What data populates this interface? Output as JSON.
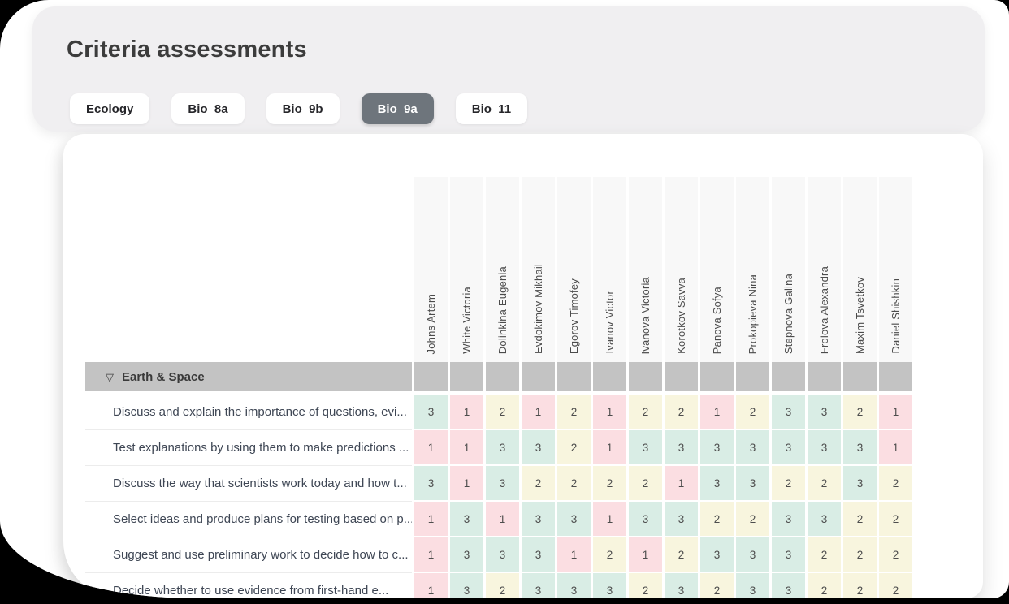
{
  "page": {
    "title": "Criteria assessments"
  },
  "tabs": [
    {
      "label": "Ecology",
      "selected": false
    },
    {
      "label": "Bio_8a",
      "selected": false
    },
    {
      "label": "Bio_9b",
      "selected": false
    },
    {
      "label": "Bio_9a",
      "selected": true
    },
    {
      "label": "Bio_11",
      "selected": false
    }
  ],
  "table": {
    "students": [
      "Johns Artem",
      "White Victoria",
      "Dolinkina Eugenia",
      "Evdokimov Mikhail",
      "Egorov Timofey",
      "Ivanov Victor",
      "Ivanova Victoria",
      "Korotkov Savva",
      "Panova Sofya",
      "Prokopieva Nina",
      "Stepnova Galina",
      "Frolova Alexandra",
      "Maxim Tsvetkov",
      "Daniel Shishkin"
    ],
    "section": {
      "label": "Earth & Space",
      "collapse_icon_glyph": "▽"
    },
    "rows": [
      {
        "label": "Discuss and explain the importance of questions, evi...",
        "scores": [
          3,
          1,
          2,
          1,
          2,
          1,
          2,
          2,
          1,
          2,
          3,
          3,
          2,
          1
        ]
      },
      {
        "label": "Test explanations by using them to make predictions ...",
        "scores": [
          1,
          1,
          3,
          3,
          2,
          1,
          3,
          3,
          3,
          3,
          3,
          3,
          3,
          1
        ]
      },
      {
        "label": "Discuss the way that scientists work today and how t...",
        "scores": [
          3,
          1,
          3,
          2,
          2,
          2,
          2,
          1,
          3,
          3,
          2,
          2,
          3,
          2
        ]
      },
      {
        "label": "Select ideas and produce plans for testing based on p...",
        "scores": [
          1,
          3,
          1,
          3,
          3,
          1,
          3,
          3,
          2,
          2,
          3,
          3,
          2,
          2
        ]
      },
      {
        "label": "Suggest and use preliminary work to decide how to c...",
        "scores": [
          1,
          3,
          3,
          3,
          1,
          2,
          1,
          2,
          3,
          3,
          3,
          2,
          2,
          2
        ]
      },
      {
        "label": "Decide whether to use evidence from first-hand e...",
        "scores": [
          1,
          3,
          2,
          3,
          3,
          3,
          2,
          3,
          2,
          3,
          3,
          2,
          2,
          2
        ],
        "clipped": true
      }
    ],
    "score_colors": {
      "1": "#fbdee2",
      "2": "#f8f5de",
      "3": "#d9ede5"
    }
  }
}
